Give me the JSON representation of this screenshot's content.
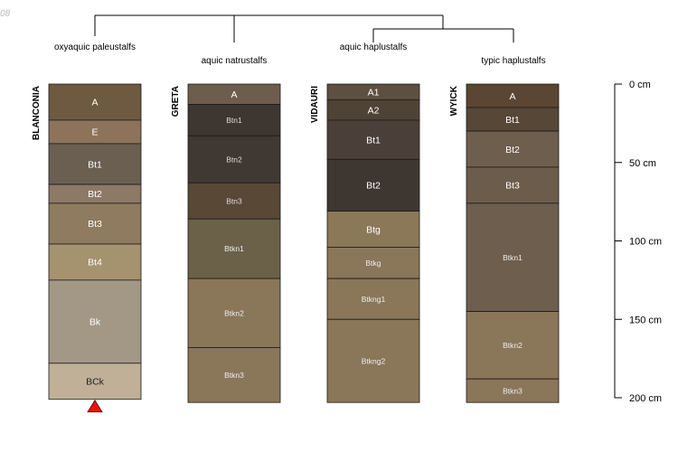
{
  "corner_text": "08",
  "taxa": [
    "oxyaquic paleustalfs",
    "aquic natrustalfs",
    "aquic haplustalfs",
    "typic haplustalfs"
  ],
  "depth_axis": {
    "unit": "cm",
    "max_depth": 200,
    "ticks": [
      {
        "value": 0,
        "label": "0 cm"
      },
      {
        "value": 50,
        "label": "50 cm"
      },
      {
        "value": 100,
        "label": "100 cm"
      },
      {
        "value": 150,
        "label": "150 cm"
      },
      {
        "value": 200,
        "label": "200 cm"
      }
    ]
  },
  "profiles": [
    {
      "name": "BLANCONIA",
      "bottom_marker": "red-triangle",
      "horizons": [
        {
          "name": "A",
          "top": 0,
          "bottom": 23,
          "color": "#6e5a40",
          "text": "#ffffff"
        },
        {
          "name": "E",
          "top": 23,
          "bottom": 38,
          "color": "#8c735a",
          "text": "#ffffff"
        },
        {
          "name": "Bt1",
          "top": 38,
          "bottom": 64,
          "color": "#6b5f52",
          "text": "#ffffff"
        },
        {
          "name": "Bt2",
          "top": 64,
          "bottom": 76,
          "color": "#8c7966",
          "text": "#ffffff"
        },
        {
          "name": "Bt3",
          "top": 76,
          "bottom": 102,
          "color": "#8f7b5f",
          "text": "#ffffff"
        },
        {
          "name": "Bt4",
          "top": 102,
          "bottom": 125,
          "color": "#a5926f",
          "text": "#ffffff"
        },
        {
          "name": "Bk",
          "top": 125,
          "bottom": 178,
          "color": "#a39885",
          "text": "#ffffff"
        },
        {
          "name": "BCk",
          "top": 178,
          "bottom": 201,
          "color": "#bfb097",
          "text": "#222222"
        }
      ]
    },
    {
      "name": "GRETA",
      "horizons": [
        {
          "name": "A",
          "top": 0,
          "bottom": 13,
          "color": "#6e5d4d",
          "text": "#ffffff"
        },
        {
          "name": "Btn1",
          "top": 13,
          "bottom": 33,
          "color": "#3e3731",
          "text": "#dddddd"
        },
        {
          "name": "Btn2",
          "top": 33,
          "bottom": 63,
          "color": "#403832",
          "text": "#dddddd"
        },
        {
          "name": "Btn3",
          "top": 63,
          "bottom": 86,
          "color": "#594836",
          "text": "#dddddd"
        },
        {
          "name": "Btkn1",
          "top": 86,
          "bottom": 124,
          "color": "#6b6149",
          "text": "#eeeeee"
        },
        {
          "name": "Btkn2",
          "top": 124,
          "bottom": 168,
          "color": "#8a7659",
          "text": "#eeeeee"
        },
        {
          "name": "Btkn3",
          "top": 168,
          "bottom": 203,
          "color": "#8a7659",
          "text": "#eeeeee"
        }
      ]
    },
    {
      "name": "VIDAURI",
      "horizons": [
        {
          "name": "A1",
          "top": 0,
          "bottom": 10,
          "color": "#5e5040",
          "text": "#ffffff"
        },
        {
          "name": "A2",
          "top": 10,
          "bottom": 23,
          "color": "#4f4335",
          "text": "#ffffff"
        },
        {
          "name": "Bt1",
          "top": 23,
          "bottom": 48,
          "color": "#4a4039",
          "text": "#ffffff"
        },
        {
          "name": "Bt2",
          "top": 48,
          "bottom": 81,
          "color": "#3e3731",
          "text": "#ffffff"
        },
        {
          "name": "Btg",
          "top": 81,
          "bottom": 104,
          "color": "#8b7858",
          "text": "#ffffff"
        },
        {
          "name": "Btkg",
          "top": 104,
          "bottom": 124,
          "color": "#8a7659",
          "text": "#eeeeee"
        },
        {
          "name": "Btkng1",
          "top": 124,
          "bottom": 150,
          "color": "#8a7659",
          "text": "#eeeeee"
        },
        {
          "name": "Btkng2",
          "top": 150,
          "bottom": 203,
          "color": "#8a7659",
          "text": "#eeeeee"
        }
      ]
    },
    {
      "name": "WYICK",
      "horizons": [
        {
          "name": "A",
          "top": 0,
          "bottom": 15,
          "color": "#5a4632",
          "text": "#ffffff"
        },
        {
          "name": "Bt1",
          "top": 15,
          "bottom": 30,
          "color": "#574737",
          "text": "#ffffff"
        },
        {
          "name": "Bt2",
          "top": 30,
          "bottom": 53,
          "color": "#6e5e4e",
          "text": "#ffffff"
        },
        {
          "name": "Bt3",
          "top": 53,
          "bottom": 76,
          "color": "#6c5c4c",
          "text": "#ffffff"
        },
        {
          "name": "Btkn1",
          "top": 76,
          "bottom": 145,
          "color": "#6e5e4e",
          "text": "#eeeeee"
        },
        {
          "name": "Btkn2",
          "top": 145,
          "bottom": 188,
          "color": "#8a7659",
          "text": "#eeeeee"
        },
        {
          "name": "Btkn3",
          "top": 188,
          "bottom": 203,
          "color": "#8a7659",
          "text": "#eeeeee"
        }
      ]
    }
  ]
}
